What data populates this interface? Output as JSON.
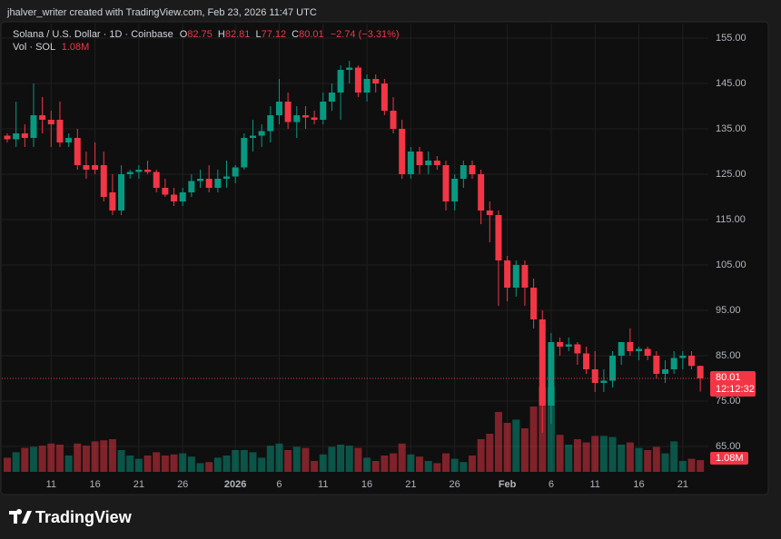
{
  "header": {
    "credit": "jhalver_writer created with TradingView.com, Feb 23, 2026 11:47 UTC",
    "brand": "TradingView"
  },
  "chart_data": {
    "type": "candlestick",
    "title": "Solana / U.S. Dollar · 1D · Coinbase",
    "categories": [
      null,
      null,
      null,
      null,
      null,
      "11",
      null,
      null,
      null,
      null,
      "16",
      null,
      null,
      null,
      null,
      "21",
      null,
      null,
      null,
      null,
      "26",
      null,
      null,
      null,
      null,
      null,
      "2026",
      null,
      null,
      null,
      null,
      "6",
      null,
      null,
      null,
      null,
      "11",
      null,
      null,
      null,
      null,
      "16",
      null,
      null,
      null,
      null,
      "21",
      null,
      null,
      null,
      null,
      "26",
      null,
      null,
      null,
      null,
      null,
      "Feb",
      null,
      null,
      null,
      null,
      "6",
      null,
      null,
      null,
      null,
      "11",
      null,
      null,
      null,
      null,
      "16",
      null,
      null,
      null,
      null,
      "21",
      null,
      null
    ],
    "open": [
      133.5,
      132.7,
      134,
      133,
      138,
      137,
      137,
      132,
      133,
      127,
      127,
      127,
      121,
      117,
      125,
      125.5,
      126,
      125.5,
      122,
      120.5,
      119,
      121,
      123.5,
      124,
      122,
      124,
      124.5,
      126.5,
      133,
      133.5,
      134.5,
      138,
      141,
      136.5,
      138,
      137.5,
      137,
      141,
      143,
      148,
      148.5,
      143,
      146,
      145,
      139,
      135,
      125,
      130,
      127,
      128,
      127,
      119,
      124,
      127,
      125,
      117,
      116,
      106,
      100,
      105,
      100,
      93,
      74,
      88,
      87,
      87.5,
      85.5,
      82,
      79,
      79.5,
      85,
      88,
      86,
      86.5,
      85,
      81,
      82,
      84.5,
      85,
      82.75
    ],
    "high": [
      134,
      141,
      136,
      145,
      142,
      139,
      141,
      134,
      135,
      130,
      132,
      130,
      125,
      127,
      126,
      127,
      128,
      126,
      124,
      122,
      122,
      125,
      126,
      127,
      126,
      128,
      127,
      134,
      137,
      136,
      140,
      146,
      143,
      140,
      140,
      139,
      143,
      145,
      149,
      150,
      149,
      147,
      147,
      146,
      142,
      137,
      131,
      131,
      130,
      129,
      128,
      125,
      128,
      128,
      126,
      119,
      117,
      107,
      106,
      106,
      102,
      95,
      90,
      89,
      89,
      88,
      87,
      86,
      82,
      86,
      88,
      91,
      87,
      87,
      86,
      84,
      86,
      86,
      86,
      82.81
    ],
    "low": [
      132,
      131,
      131,
      131,
      134,
      131,
      131,
      131,
      126,
      124,
      125,
      119,
      116,
      116,
      124,
      124,
      125,
      121,
      120,
      118,
      118,
      120,
      122,
      121,
      121,
      122,
      123,
      126,
      130,
      131,
      132,
      136,
      135,
      133,
      135,
      136,
      136,
      139,
      137,
      145,
      142,
      141,
      143,
      138,
      134,
      124,
      124,
      125,
      125,
      126,
      117,
      117,
      122,
      124,
      114,
      110,
      96,
      97,
      98,
      96,
      91,
      68,
      70,
      85,
      86,
      83,
      81,
      77,
      77,
      78,
      83,
      85,
      84,
      84,
      80,
      79,
      81,
      82,
      82,
      77.12
    ],
    "close": [
      132.7,
      134,
      133,
      138,
      137,
      136,
      132,
      133,
      127,
      126,
      126,
      120,
      117,
      125,
      125.5,
      126,
      125.5,
      122,
      120.5,
      119,
      121,
      123.5,
      124,
      122,
      124,
      124.5,
      126.5,
      133,
      133.5,
      134.5,
      138,
      141,
      136.5,
      138,
      137.5,
      137,
      141,
      143,
      148,
      148.5,
      143,
      146,
      145,
      139,
      135,
      125,
      130,
      127,
      128,
      127,
      119,
      124,
      127,
      125,
      117,
      116,
      106,
      100,
      105,
      100,
      93,
      74,
      88,
      87,
      87.5,
      85.5,
      82,
      79,
      79.5,
      85,
      88,
      86,
      86.5,
      85,
      81,
      82,
      84.5,
      85,
      82.75,
      80.01
    ],
    "volume": [
      1.3,
      1.8,
      2.2,
      2.3,
      2.4,
      2.6,
      2.5,
      1.5,
      2.6,
      2.4,
      2.8,
      2.9,
      3.0,
      2.0,
      1.5,
      1.2,
      1.5,
      1.8,
      1.5,
      1.6,
      1.7,
      1.4,
      0.8,
      0.9,
      1.3,
      1.5,
      2.0,
      2.0,
      1.8,
      1.3,
      2.4,
      2.6,
      2.0,
      2.3,
      2.2,
      1.0,
      1.6,
      2.3,
      2.5,
      2.4,
      2.2,
      1.3,
      1.0,
      1.5,
      1.7,
      2.6,
      1.6,
      1.4,
      1.0,
      0.8,
      1.7,
      1.2,
      0.9,
      1.5,
      3.0,
      3.5,
      5.5,
      4.5,
      4.8,
      4.0,
      6.0,
      7.8,
      7.8,
      3.4,
      2.5,
      3.0,
      2.7,
      3.3,
      3.3,
      3.2,
      2.5,
      2.7,
      2.2,
      2.0,
      2.3,
      1.7,
      2.8,
      1.0,
      1.2,
      1.08
    ],
    "ohlc_labels": [
      "O",
      "H",
      "L",
      "C"
    ],
    "change_label": "−2.74 (−3.31%)",
    "volume_label": "Vol · SOL",
    "volume_last_label": "1.08M",
    "countdown": "12:12:32",
    "colors": {
      "up": "#089981",
      "down": "#f23645"
    },
    "ylim": [
      59.4,
      159
    ],
    "yticks": [
      {
        "value": 65,
        "label": "65.00"
      },
      {
        "value": 75,
        "label": "75.00"
      },
      {
        "value": 85,
        "label": "85.00"
      },
      {
        "value": 95,
        "label": "95.00"
      },
      {
        "value": 105,
        "label": "105.00"
      },
      {
        "value": 115,
        "label": "115.00"
      },
      {
        "value": 125,
        "label": "125.00"
      },
      {
        "value": 135,
        "label": "135.00"
      },
      {
        "value": 145,
        "label": "145.00"
      },
      {
        "value": 155,
        "label": "155.00"
      }
    ],
    "grid": true
  }
}
